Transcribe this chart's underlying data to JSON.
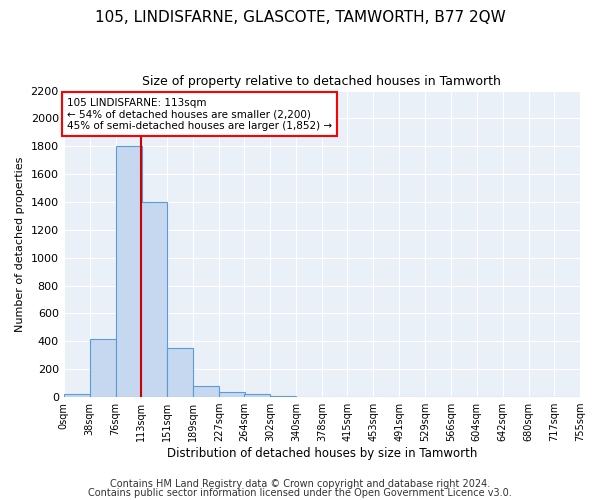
{
  "title": "105, LINDISFARNE, GLASCOTE, TAMWORTH, B77 2QW",
  "subtitle": "Size of property relative to detached houses in Tamworth",
  "xlabel": "Distribution of detached houses by size in Tamworth",
  "ylabel": "Number of detached properties",
  "bin_edges": [
    0,
    38,
    76,
    113,
    151,
    189,
    227,
    264,
    302,
    340,
    378,
    415,
    453,
    491,
    529,
    566,
    604,
    642,
    680,
    717,
    755
  ],
  "bar_heights": [
    20,
    420,
    1800,
    1400,
    350,
    80,
    35,
    20,
    5,
    0,
    0,
    0,
    0,
    0,
    0,
    0,
    0,
    0,
    0,
    0
  ],
  "bar_color": "#c5d8f0",
  "bar_edge_color": "#5b9bd5",
  "red_line_x": 113,
  "annotation_text": "105 LINDISFARNE: 113sqm\n← 54% of detached houses are smaller (2,200)\n45% of semi-detached houses are larger (1,852) →",
  "annotation_box_color": "white",
  "annotation_box_edge_color": "red",
  "red_line_color": "#cc0000",
  "ylim": [
    0,
    2200
  ],
  "yticks": [
    0,
    200,
    400,
    600,
    800,
    1000,
    1200,
    1400,
    1600,
    1800,
    2000,
    2200
  ],
  "bg_color": "#eaf0f8",
  "footer_line1": "Contains HM Land Registry data © Crown copyright and database right 2024.",
  "footer_line2": "Contains public sector information licensed under the Open Government Licence v3.0.",
  "title_fontsize": 11,
  "subtitle_fontsize": 9,
  "footer_fontsize": 7
}
